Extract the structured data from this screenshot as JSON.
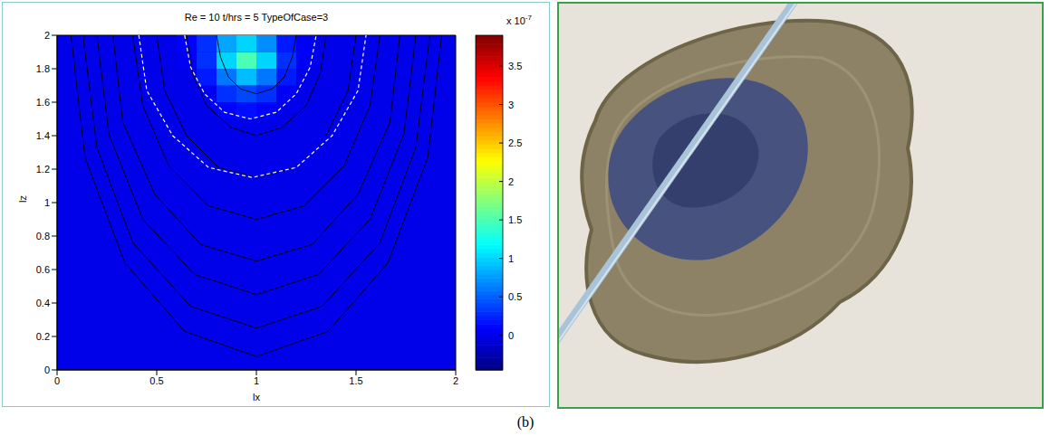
{
  "chart_data": {
    "type": "heatmap",
    "title": "Re = 10 t/hrs = 5 TypeOfCase=3",
    "x_label": "lx",
    "y_label": "lz",
    "xlim": [
      0,
      2
    ],
    "ylim": [
      0,
      2
    ],
    "xticks": [
      0,
      0.5,
      1,
      1.5,
      2
    ],
    "yticks": [
      0,
      0.2,
      0.4,
      0.6,
      0.8,
      1,
      1.2,
      1.4,
      1.6,
      1.8,
      2
    ],
    "grid": false,
    "cells": {
      "x_edges": [
        0.6,
        0.7,
        0.8,
        0.9,
        1,
        1.1,
        1.2,
        1.3
      ],
      "z_edges": [
        1.5,
        1.6,
        1.7,
        1.8,
        1.9,
        2
      ],
      "values": [
        [
          0,
          0,
          0.1,
          0.15,
          0.1,
          0,
          0
        ],
        [
          0,
          0.05,
          0.3,
          0.4,
          0.3,
          0.05,
          0
        ],
        [
          0,
          0.2,
          0.6,
          0.9,
          0.6,
          0.2,
          0
        ],
        [
          0.05,
          0.3,
          1,
          1.5,
          1,
          0.3,
          0.05
        ],
        [
          0.1,
          0.3,
          0.8,
          1,
          0.7,
          0.2,
          0.05
        ]
      ],
      "background_value": 0
    },
    "colorbar": {
      "lim": [
        -0.45,
        3.9
      ],
      "ticks": [
        0,
        0.5,
        1,
        1.5,
        2,
        2.5,
        3,
        3.5
      ],
      "scale_label": "x 10",
      "scale_exponent": "-7"
    },
    "streamlines": {
      "color": "#000000",
      "line_style": "solid",
      "lines": [
        {
          "x": [
            0.8,
            0.82,
            0.86,
            0.92,
            1,
            1.08,
            1.14,
            1.18,
            1.2
          ],
          "z": [
            2,
            1.87,
            1.75,
            1.68,
            1.65,
            1.68,
            1.75,
            1.87,
            2
          ]
        },
        {
          "x": [
            0.65,
            0.68,
            0.75,
            0.87,
            1,
            1.13,
            1.25,
            1.32,
            1.35
          ],
          "z": [
            2,
            1.77,
            1.58,
            1.45,
            1.4,
            1.45,
            1.58,
            1.77,
            2
          ]
        },
        {
          "x": [
            0.5,
            0.54,
            0.65,
            0.81,
            1,
            1.19,
            1.35,
            1.46,
            1.5
          ],
          "z": [
            2,
            1.67,
            1.4,
            1.21,
            1.15,
            1.21,
            1.4,
            1.67,
            2
          ]
        },
        {
          "x": [
            0.38,
            0.43,
            0.56,
            0.76,
            1,
            1.24,
            1.44,
            1.57,
            1.62
          ],
          "z": [
            2,
            1.58,
            1.22,
            0.98,
            0.9,
            0.98,
            1.22,
            1.58,
            2
          ]
        },
        {
          "x": [
            0.28,
            0.33,
            0.49,
            0.72,
            1,
            1.28,
            1.51,
            1.67,
            1.72
          ],
          "z": [
            2,
            1.48,
            1.05,
            0.75,
            0.65,
            0.75,
            1.05,
            1.48,
            2
          ]
        },
        {
          "x": [
            0.2,
            0.26,
            0.43,
            0.69,
            1,
            1.31,
            1.57,
            1.74,
            1.8
          ],
          "z": [
            2,
            1.41,
            0.9,
            0.57,
            0.45,
            0.57,
            0.9,
            1.41,
            2
          ]
        },
        {
          "x": [
            0.13,
            0.2,
            0.38,
            0.67,
            1,
            1.33,
            1.62,
            1.8,
            1.87
          ],
          "z": [
            2,
            1.33,
            0.76,
            0.38,
            0.25,
            0.38,
            0.76,
            1.33,
            2
          ]
        },
        {
          "x": [
            0.07,
            0.14,
            0.34,
            0.64,
            1,
            1.36,
            1.66,
            1.86,
            1.93
          ],
          "z": [
            2,
            1.27,
            0.64,
            0.23,
            0.08,
            0.23,
            0.64,
            1.27,
            2
          ]
        }
      ]
    },
    "contours": {
      "color": "#ffffff",
      "line_style": "dashed",
      "lines": [
        {
          "x": [
            0.64,
            0.67,
            0.74,
            0.84,
            0.97,
            1.1,
            1.2,
            1.27,
            1.3
          ],
          "z": [
            2,
            1.81,
            1.65,
            1.54,
            1.5,
            1.54,
            1.65,
            1.81,
            2
          ]
        },
        {
          "x": [
            0.41,
            0.45,
            0.58,
            0.76,
            0.98,
            1.2,
            1.38,
            1.51,
            1.55
          ],
          "z": [
            2,
            1.67,
            1.4,
            1.21,
            1.15,
            1.21,
            1.4,
            1.67,
            2
          ]
        }
      ]
    }
  },
  "caption": "(b)"
}
